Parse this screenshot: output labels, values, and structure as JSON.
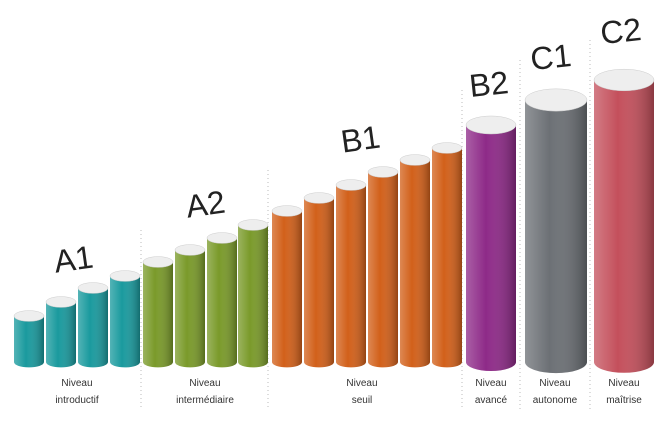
{
  "levels": [
    {
      "code": "A1",
      "label": [
        "Niveau",
        "introductif"
      ]
    },
    {
      "code": "A2",
      "label": [
        "Niveau",
        "intermédiaire"
      ]
    },
    {
      "code": "B1",
      "label": [
        "Niveau",
        "seuil"
      ]
    },
    {
      "code": "B2",
      "label": [
        "Niveau",
        "avancé"
      ]
    },
    {
      "code": "C1",
      "label": [
        "Niveau",
        "autonome"
      ]
    },
    {
      "code": "C2",
      "label": [
        "Niveau",
        "maîtrise"
      ]
    }
  ]
}
